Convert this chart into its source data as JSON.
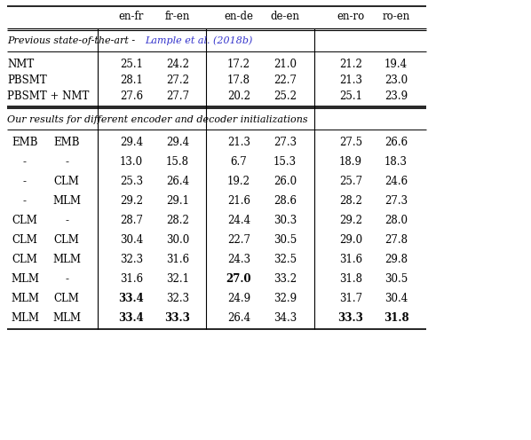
{
  "section1_label_plain": "Previous state-of-the-art - ",
  "section1_label_cite": "Lample et al. (2018b)",
  "section1_rows": [
    [
      "NMT",
      "",
      "25.1",
      "24.2",
      "17.2",
      "21.0",
      "21.2",
      "19.4"
    ],
    [
      "PBSMT",
      "",
      "28.1",
      "27.2",
      "17.8",
      "22.7",
      "21.3",
      "23.0"
    ],
    [
      "PBSMT + NMT",
      "",
      "27.6",
      "27.7",
      "20.2",
      "25.2",
      "25.1",
      "23.9"
    ]
  ],
  "section2_label": "Our results for different encoder and decoder initializations",
  "section2_rows": [
    [
      "EMB",
      "EMB",
      "29.4",
      "29.4",
      "21.3",
      "27.3",
      "27.5",
      "26.6"
    ],
    [
      "-",
      "-",
      "13.0",
      "15.8",
      "6.7",
      "15.3",
      "18.9",
      "18.3"
    ],
    [
      "-",
      "CLM",
      "25.3",
      "26.4",
      "19.2",
      "26.0",
      "25.7",
      "24.6"
    ],
    [
      "-",
      "MLM",
      "29.2",
      "29.1",
      "21.6",
      "28.6",
      "28.2",
      "27.3"
    ],
    [
      "CLM",
      "-",
      "28.7",
      "28.2",
      "24.4",
      "30.3",
      "29.2",
      "28.0"
    ],
    [
      "CLM",
      "CLM",
      "30.4",
      "30.0",
      "22.7",
      "30.5",
      "29.0",
      "27.8"
    ],
    [
      "CLM",
      "MLM",
      "32.3",
      "31.6",
      "24.3",
      "32.5",
      "31.6",
      "29.8"
    ],
    [
      "MLM",
      "-",
      "31.6",
      "32.1",
      "27.0",
      "33.2",
      "31.8",
      "30.5"
    ],
    [
      "MLM",
      "CLM",
      "33.4",
      "32.3",
      "24.9",
      "32.9",
      "31.7",
      "30.4"
    ],
    [
      "MLM",
      "MLM",
      "33.4",
      "33.3",
      "26.4",
      "34.3",
      "33.3",
      "31.8"
    ]
  ],
  "bold_cells_s2": {
    "7": [
      4
    ],
    "8": [
      2
    ],
    "9": [
      2,
      3,
      6,
      7
    ]
  },
  "cite_color": "#3333CC",
  "bg_color": "#ffffff",
  "text_color": "#000000",
  "header_cols": [
    "en-fr",
    "fr-en",
    "en-de",
    "de-en",
    "en-ro",
    "ro-en"
  ]
}
